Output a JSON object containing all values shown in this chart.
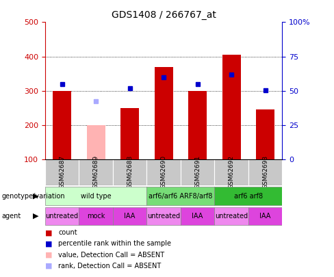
{
  "title": "GDS1408 / 266767_at",
  "samples": [
    "GSM62687",
    "GSM62689",
    "GSM62688",
    "GSM62690",
    "GSM62691",
    "GSM62692",
    "GSM62693"
  ],
  "bar_values": [
    300,
    200,
    250,
    370,
    300,
    405,
    245
  ],
  "bar_colors": [
    "#cc0000",
    "#ffb3b3",
    "#cc0000",
    "#cc0000",
    "#cc0000",
    "#cc0000",
    "#cc0000"
  ],
  "rank_values": [
    320,
    270,
    307,
    340,
    320,
    348,
    302
  ],
  "rank_colors": [
    "#0000cc",
    "#aaaaff",
    "#0000cc",
    "#0000cc",
    "#0000cc",
    "#0000cc",
    "#0000cc"
  ],
  "ylim_low": 100,
  "ylim_high": 500,
  "yticks_left": [
    100,
    200,
    300,
    400,
    500
  ],
  "yticks_right_labels": [
    "0",
    "25",
    "50",
    "75",
    "100%"
  ],
  "yticks_right_vals": [
    100,
    200,
    300,
    400,
    500
  ],
  "right_color": "#0000cc",
  "left_color": "#cc0000",
  "genotype_groups": [
    {
      "label": "wild type",
      "start": 0,
      "end": 3,
      "color": "#ccffcc"
    },
    {
      "label": "arf6/arf6 ARF8/arf8",
      "start": 3,
      "end": 5,
      "color": "#77dd77"
    },
    {
      "label": "arf6 arf8",
      "start": 5,
      "end": 7,
      "color": "#33bb33"
    }
  ],
  "agent_groups": [
    {
      "label": "untreated",
      "start": 0,
      "end": 1,
      "color": "#ee88ee"
    },
    {
      "label": "mock",
      "start": 1,
      "end": 2,
      "color": "#dd44dd"
    },
    {
      "label": "IAA",
      "start": 2,
      "end": 3,
      "color": "#dd44dd"
    },
    {
      "label": "untreated",
      "start": 3,
      "end": 4,
      "color": "#ee88ee"
    },
    {
      "label": "IAA",
      "start": 4,
      "end": 5,
      "color": "#dd44dd"
    },
    {
      "label": "untreated",
      "start": 5,
      "end": 6,
      "color": "#ee88ee"
    },
    {
      "label": "IAA",
      "start": 6,
      "end": 7,
      "color": "#dd44dd"
    }
  ],
  "legend_colors": [
    "#cc0000",
    "#0000cc",
    "#ffb3b3",
    "#aaaaff"
  ],
  "legend_labels": [
    "count",
    "percentile rank within the sample",
    "value, Detection Call = ABSENT",
    "rank, Detection Call = ABSENT"
  ],
  "grid_lines": [
    200,
    300,
    400
  ],
  "bar_width": 0.55,
  "marker_size": 5
}
